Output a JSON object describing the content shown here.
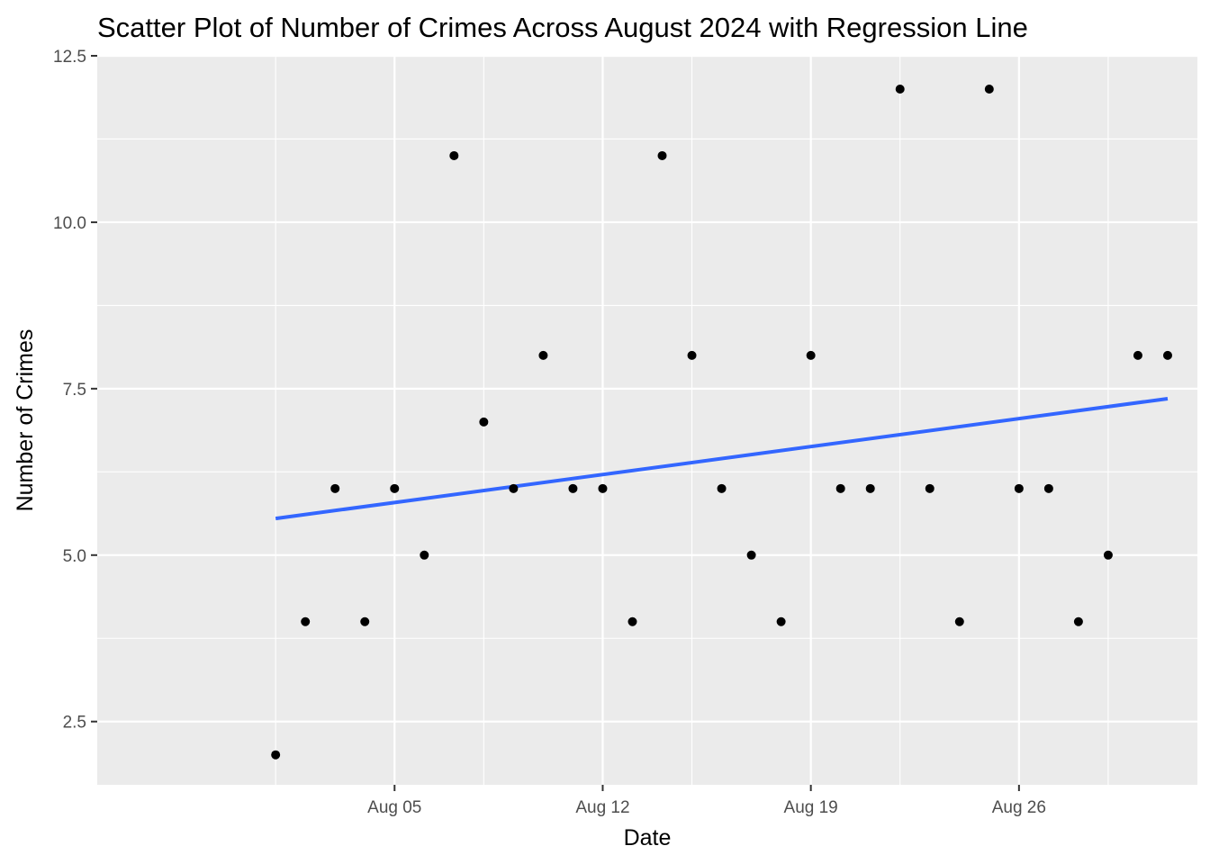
{
  "chart_data": {
    "type": "scatter",
    "title": "Scatter Plot of Number of Crimes Across August 2024 with Regression Line",
    "xlabel": "Date",
    "ylabel": "Number of Crimes",
    "x": [
      "2024-08-01",
      "2024-08-02",
      "2024-08-03",
      "2024-08-04",
      "2024-08-05",
      "2024-08-06",
      "2024-08-07",
      "2024-08-08",
      "2024-08-09",
      "2024-08-10",
      "2024-08-11",
      "2024-08-12",
      "2024-08-13",
      "2024-08-14",
      "2024-08-15",
      "2024-08-16",
      "2024-08-17",
      "2024-08-18",
      "2024-08-19",
      "2024-08-20",
      "2024-08-21",
      "2024-08-22",
      "2024-08-23",
      "2024-08-24",
      "2024-08-25",
      "2024-08-26",
      "2024-08-27",
      "2024-08-28",
      "2024-08-29",
      "2024-08-30",
      "2024-08-31"
    ],
    "y": [
      2,
      4,
      6,
      4,
      6,
      5,
      11,
      7,
      6,
      8,
      6,
      6,
      4,
      11,
      8,
      6,
      5,
      4,
      8,
      6,
      6,
      12,
      6,
      4,
      12,
      6,
      6,
      4,
      5,
      8,
      8
    ],
    "regression_line": {
      "x": [
        "2024-08-01",
        "2024-08-31"
      ],
      "y": [
        5.55,
        7.35
      ],
      "color": "#3366FF"
    },
    "point_color": "#000000",
    "xlim": [
      "2024-07-26",
      "2024-09-01"
    ],
    "ylim": [
      1.55,
      12.5
    ],
    "x_ticks": [
      {
        "value": "2024-08-05",
        "label": "Aug 05"
      },
      {
        "value": "2024-08-12",
        "label": "Aug 12"
      },
      {
        "value": "2024-08-19",
        "label": "Aug 19"
      },
      {
        "value": "2024-08-26",
        "label": "Aug 26"
      }
    ],
    "x_minor_ticks": [
      "2024-08-01",
      "2024-08-08",
      "2024-08-15",
      "2024-08-22",
      "2024-08-29"
    ],
    "y_ticks": [
      {
        "value": 2.5,
        "label": "2.5"
      },
      {
        "value": 5.0,
        "label": "5.0"
      },
      {
        "value": 7.5,
        "label": "7.5"
      },
      {
        "value": 10.0,
        "label": "10.0"
      },
      {
        "value": 12.5,
        "label": "12.5"
      }
    ],
    "y_minor_ticks": [
      3.75,
      6.25,
      8.75,
      11.25
    ],
    "grid": true,
    "panel_background": "#EBEBEB",
    "grid_color": "#FFFFFF"
  }
}
